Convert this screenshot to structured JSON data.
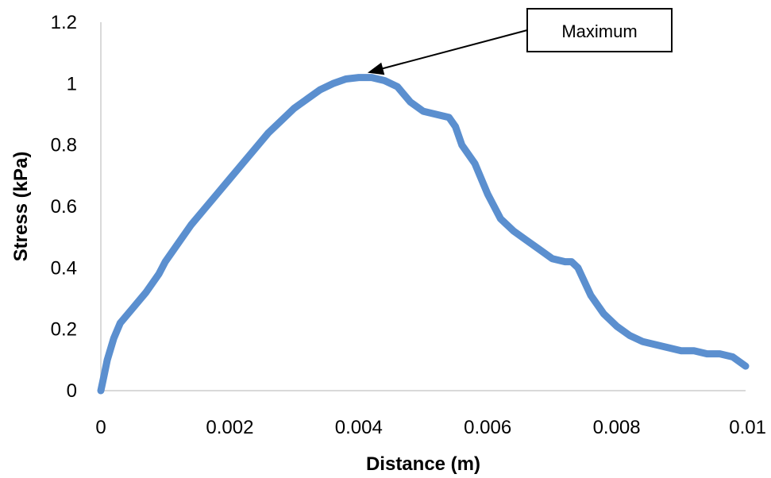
{
  "chart_data": {
    "type": "line",
    "xlabel": "Distance (m)",
    "ylabel": "Stress (kPa)",
    "xlim": [
      0,
      0.01
    ],
    "ylim": [
      0,
      1.2
    ],
    "x_ticks": [
      0,
      0.002,
      0.004,
      0.006,
      0.008,
      0.01
    ],
    "x_tick_labels": [
      "0",
      "0.002",
      "0.004",
      "0.006",
      "0.008",
      "0.01"
    ],
    "y_ticks": [
      0,
      0.2,
      0.4,
      0.6,
      0.8,
      1,
      1.2
    ],
    "y_tick_labels": [
      "0",
      "0.2",
      "0.4",
      "0.6",
      "0.8",
      "1",
      "1.2"
    ],
    "grid": false,
    "legend": "none",
    "series": [
      {
        "color": "#5b8fcf",
        "x": [
          0,
          5e-05,
          0.0001,
          0.0002,
          0.0003,
          0.0005,
          0.0007,
          0.0009,
          0.001,
          0.0012,
          0.0014,
          0.0016,
          0.0018,
          0.002,
          0.0022,
          0.0024,
          0.0026,
          0.0028,
          0.003,
          0.0032,
          0.0034,
          0.0036,
          0.0038,
          0.004,
          0.0042,
          0.0044,
          0.0046,
          0.0048,
          0.005,
          0.0052,
          0.0054,
          0.0055,
          0.0056,
          0.0058,
          0.006,
          0.0062,
          0.0064,
          0.0066,
          0.0068,
          0.007,
          0.0072,
          0.0073,
          0.0074,
          0.0076,
          0.0078,
          0.008,
          0.0082,
          0.0084,
          0.0086,
          0.0088,
          0.009,
          0.0092,
          0.0094,
          0.0096,
          0.0098,
          0.01
        ],
        "y": [
          0,
          0.05,
          0.1,
          0.17,
          0.22,
          0.27,
          0.32,
          0.38,
          0.42,
          0.48,
          0.54,
          0.59,
          0.64,
          0.69,
          0.74,
          0.79,
          0.84,
          0.88,
          0.92,
          0.95,
          0.98,
          1.0,
          1.015,
          1.02,
          1.02,
          1.01,
          0.99,
          0.94,
          0.91,
          0.9,
          0.89,
          0.86,
          0.8,
          0.74,
          0.64,
          0.56,
          0.52,
          0.49,
          0.46,
          0.43,
          0.42,
          0.42,
          0.4,
          0.31,
          0.25,
          0.21,
          0.18,
          0.16,
          0.15,
          0.14,
          0.13,
          0.13,
          0.12,
          0.12,
          0.11,
          0.08
        ]
      }
    ],
    "annotations": [
      {
        "text": "Maximum",
        "target": [
          0.0041,
          1.02
        ]
      }
    ]
  }
}
